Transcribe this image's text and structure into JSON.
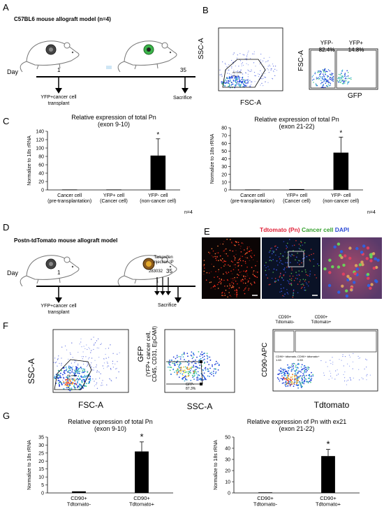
{
  "panelA": {
    "letter": "A",
    "title": "C57BL6 mouse allograft model (n=4)",
    "axis_day": "Day",
    "day1": "1",
    "day35": "35",
    "event1": "YFP+cancer cell\ntransplant",
    "event1_l1": "YFP+cancer cell",
    "event1_l2": "transplant",
    "event2": "Sacrifice"
  },
  "panelB": {
    "letter": "B",
    "plot1": {
      "ylabel": "SSC-A",
      "xlabel": "FSC-A",
      "gate": "All cells\n91.1",
      "gate_l1": "All cells",
      "gate_l2": "91.1",
      "xticks": [
        "0",
        "50K",
        "100K",
        "150K",
        "200K",
        "250K"
      ],
      "yticks": [
        "0",
        "50K",
        "100K",
        "150K",
        "200K",
        "250K"
      ]
    },
    "plot2": {
      "ylabel": "FSC-A",
      "xlabel": "GFP",
      "left_gate": "YFP-",
      "left_pct": "82.4%",
      "right_gate": "YFP+",
      "right_pct": "14.8%",
      "xticks": [
        "0",
        "10⁴"
      ],
      "yticks": [
        "50K",
        "100K",
        "150K",
        "200K",
        "250K"
      ]
    }
  },
  "panelC": {
    "letter": "C",
    "chart_data": [
      {
        "type": "bar",
        "title": "Relative expression of total Pn\n(exon 9-10)",
        "title_l1": "Relative expression of total Pn",
        "title_l2": "(exon 9-10)",
        "ylabel": "Normalize to 18s rRNA",
        "ylim": [
          0,
          140
        ],
        "yticks": [
          "0",
          "20",
          "40",
          "60",
          "80",
          "100",
          "120",
          "140"
        ],
        "categories": [
          "Cancer cell (pre-transplantation)",
          "YFP+ cell (Cancer cell)",
          "YFP- cell (non-cancer cell)"
        ],
        "cat_l1": [
          "Cancer cell",
          "YFP+ cell",
          "YFP- cell"
        ],
        "cat_l2": [
          "(pre-transplantation)",
          "(Cancer cell)",
          "(non-cancer cell)"
        ],
        "values": [
          1,
          1,
          82
        ],
        "errors": [
          0,
          0,
          40
        ],
        "significance": [
          "",
          "",
          "*"
        ],
        "note": "n=4"
      },
      {
        "type": "bar",
        "title": "Relative expression of total Pn\n(exon 21-22)",
        "title_l1": "Relative expression of total Pn",
        "title_l2": "(exon 21-22)",
        "ylabel": "Normalize to 18s rRNA",
        "ylim": [
          0,
          80
        ],
        "yticks": [
          "0",
          "10",
          "20",
          "30",
          "40",
          "50",
          "60",
          "70",
          "80"
        ],
        "categories": [
          "Cancer cell (pre-transplantation)",
          "YFP+ cell (Cancer cell)",
          "YFP- cell (non-cancer cell)"
        ],
        "cat_l1": [
          "Cancer cell",
          "YFP+ cell",
          "YFP- cell"
        ],
        "cat_l2": [
          "(pre-transplantation)",
          "(Cancer cell)",
          "(non-cancer cell)"
        ],
        "values": [
          0.5,
          1,
          48
        ],
        "errors": [
          0,
          0,
          20
        ],
        "significance": [
          "",
          "",
          "*"
        ],
        "note": "n=4"
      }
    ]
  },
  "panelD": {
    "letter": "D",
    "title": "Postn-tdTomato mouse allograft model",
    "axis_day": "Day",
    "day1": "1",
    "day35": "35",
    "tamoxifen_l1": "Tamoxifen",
    "tamoxifen_l2": "injection IP",
    "tamoxifen_days": "283032",
    "event1_l1": "YFP+cancer cell",
    "event1_l2": "transplant",
    "event2": "Sacrifice"
  },
  "panelE": {
    "letter": "E",
    "legend_tdtomato": "Tdtomato (Pn)",
    "legend_cancer": "Cancer cell",
    "legend_dapi": "DAPI",
    "colors": {
      "tdtomato": "#e0233a",
      "cancer": "#33a02c",
      "dapi": "#2d4bd6"
    }
  },
  "panelF": {
    "letter": "F",
    "plot1": {
      "ylabel": "SSC-A",
      "xlabel": "FSC-A",
      "gate_l1": "All cells",
      "gate_l2": "96.0",
      "xticks": [
        "0",
        "50K",
        "100K",
        "150K",
        "200K",
        "250K"
      ],
      "yticks": [
        "0",
        "50K",
        "100K",
        "150K",
        "200K",
        "250K"
      ]
    },
    "plot2": {
      "ylabel_l1": "GFP",
      "ylabel_l2": "(YFP+ cancer cell,",
      "ylabel_l3": "CD45, CD31, EpCAM)",
      "xlabel": "SSC-A",
      "gate_l1": "GFP-",
      "gate_l2": "87.3%"
    },
    "plot3": {
      "ylabel": "CD90-APC",
      "xlabel": "Tdtomato",
      "q1_l1": "CD90+",
      "q1_l2": "Tdtomato-",
      "q2_l1": "CD90+",
      "q2_l2": "Tdtomato+",
      "q3_l1": "CD90+ tdtomato-",
      "q3_l2": "1.63",
      "q4_l1": "CD90+ tdtomato+",
      "q4_l2": "0.53"
    }
  },
  "panelG": {
    "letter": "G",
    "chart_data": [
      {
        "type": "bar",
        "title": "Relative expression of total Pn\n(exon 9-10)",
        "title_l1": "Relative expression of total Pn",
        "title_l2": "(exon 9-10)",
        "ylabel": "Normalize to 18s rRNA",
        "ylim": [
          0,
          35
        ],
        "yticks": [
          "0",
          "5",
          "10",
          "15",
          "20",
          "25",
          "30",
          "35"
        ],
        "categories": [
          "CD90+ Tdtomato-",
          "CD90+ Tdtomato+"
        ],
        "cat_l1": [
          "CD90+",
          "CD90+"
        ],
        "cat_l2": [
          "Tdtomato-",
          "Tdtomato+"
        ],
        "values": [
          1,
          26
        ],
        "errors": [
          0,
          6
        ],
        "significance": [
          "",
          "*"
        ]
      },
      {
        "type": "bar",
        "title": "Relative expression of Pn with ex21\n(exon 21-22)",
        "title_l1": "Relative expression of Pn with ex21",
        "title_l2": "(exon 21-22)",
        "ylabel": "Normalize to 18s rRNA",
        "ylim": [
          0,
          50
        ],
        "yticks": [
          "0",
          "10",
          "20",
          "30",
          "40",
          "50"
        ],
        "categories": [
          "CD90+ Tdtomato-",
          "CD90+ Tdtomato+"
        ],
        "cat_l1": [
          "CD90+",
          "CD90+"
        ],
        "cat_l2": [
          "Tdtomato-",
          "Tdtomato+"
        ],
        "values": [
          0.5,
          33
        ],
        "errors": [
          0,
          6
        ],
        "significance": [
          "",
          "*"
        ]
      }
    ]
  }
}
